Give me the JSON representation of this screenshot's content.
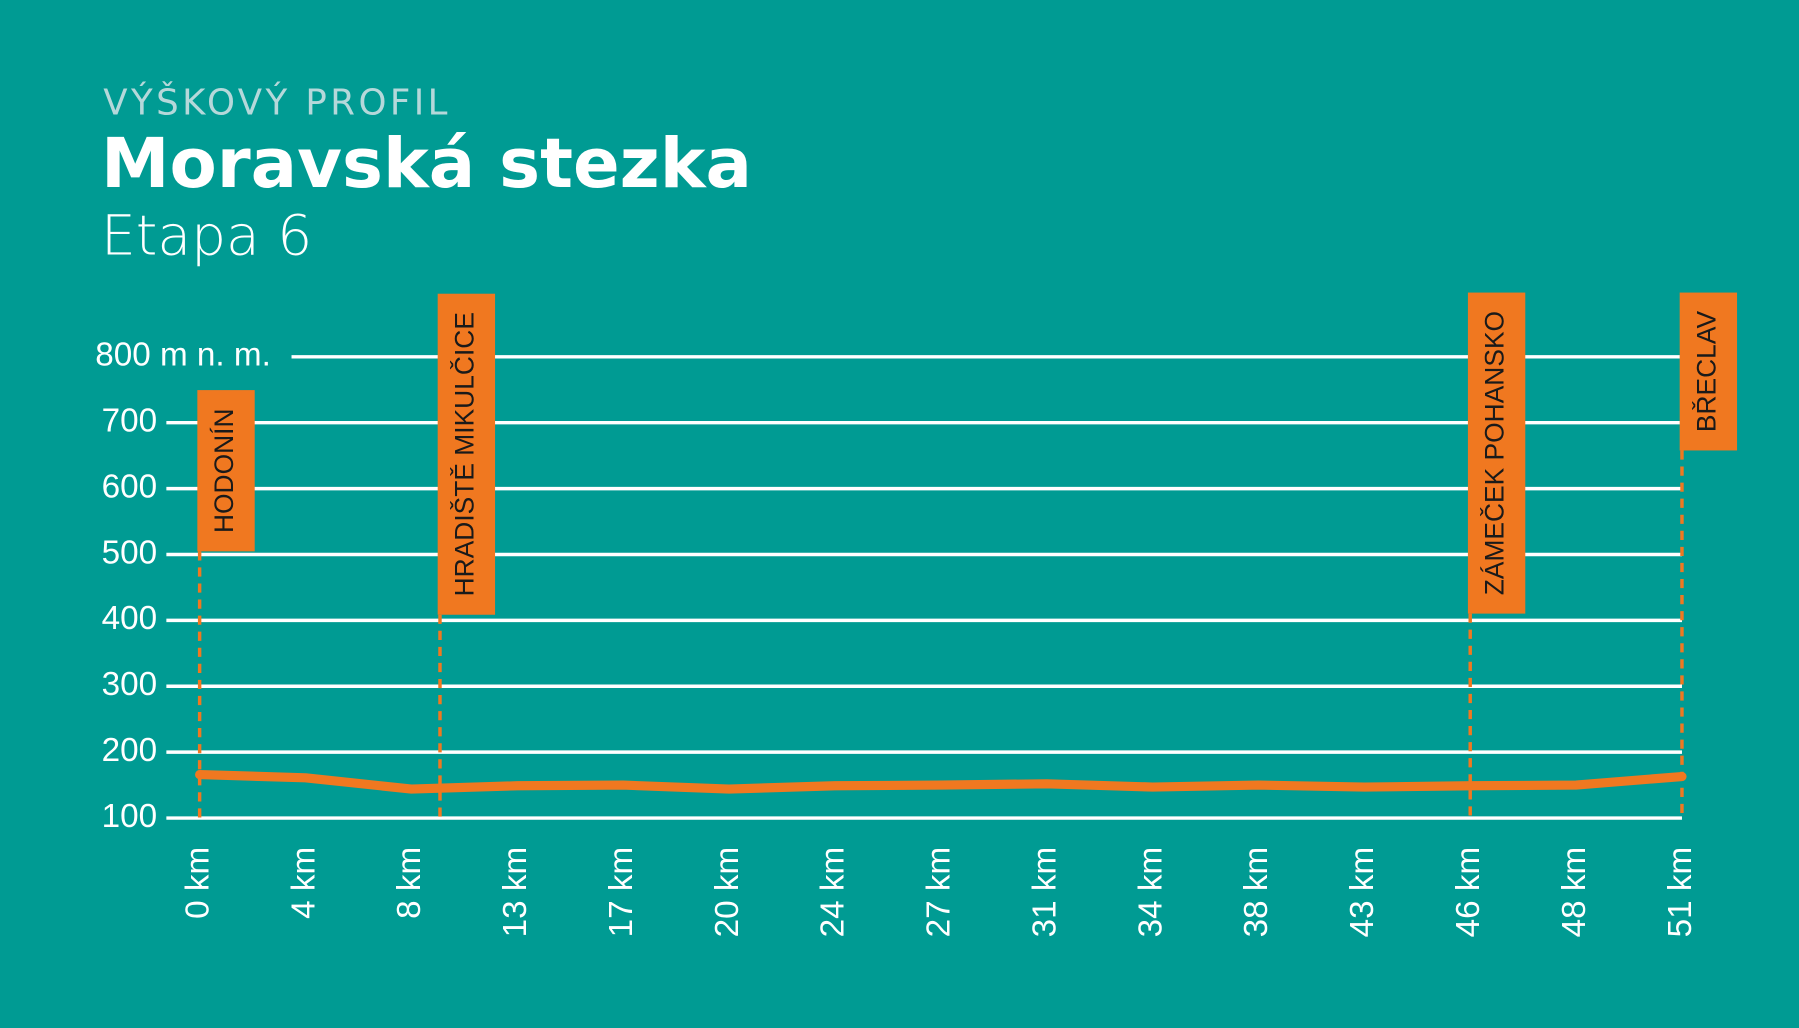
{
  "chart_data": {
    "type": "line",
    "overline": "VÝŠKOVÝ PROFIL",
    "title": "Moravská stezka",
    "subtitle": "Etapa 6",
    "categories": [
      "0 km",
      "4 km",
      "8 km",
      "13 km",
      "17 km",
      "20 km",
      "24 km",
      "27 km",
      "31 km",
      "34 km",
      "38 km",
      "43 km",
      "46 km",
      "48 km",
      "51 km"
    ],
    "series": [
      {
        "color": "#f07820",
        "values": [
          166,
          161,
          144,
          149,
          150,
          144,
          149,
          150,
          152,
          147,
          150,
          147,
          149,
          150,
          163
        ]
      }
    ],
    "ylim": [
      100,
      800
    ],
    "yticks": [
      100,
      200,
      300,
      400,
      500,
      600,
      700,
      {
        "value": 800,
        "label": "800 m n. m."
      }
    ],
    "grid": true,
    "markers": [
      "HODONÍN",
      "HRADIŠTĚ MIKULČICE",
      "ZÁMEČEK POHANSKO",
      "BŘECLAV"
    ],
    "marker_color": "#f07820"
  }
}
